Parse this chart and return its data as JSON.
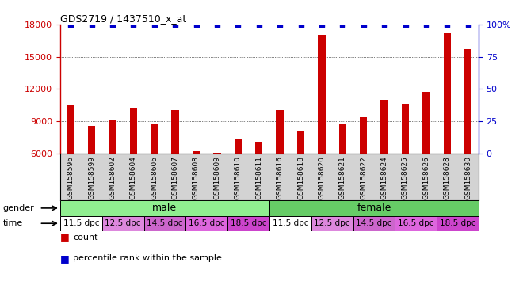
{
  "title": "GDS2719 / 1437510_x_at",
  "samples": [
    "GSM158596",
    "GSM158599",
    "GSM158602",
    "GSM158604",
    "GSM158606",
    "GSM158607",
    "GSM158608",
    "GSM158609",
    "GSM158610",
    "GSM158611",
    "GSM158616",
    "GSM158618",
    "GSM158620",
    "GSM158621",
    "GSM158622",
    "GSM158624",
    "GSM158625",
    "GSM158626",
    "GSM158628",
    "GSM158630"
  ],
  "counts": [
    10500,
    8600,
    9050,
    10200,
    8700,
    10050,
    6250,
    6100,
    7400,
    7100,
    10050,
    8100,
    17000,
    8800,
    9400,
    11000,
    10600,
    11700,
    17200,
    15700
  ],
  "percentile_ranks": [
    100,
    100,
    100,
    100,
    100,
    100,
    100,
    100,
    100,
    100,
    100,
    100,
    100,
    100,
    100,
    100,
    100,
    100,
    100,
    100
  ],
  "bar_color": "#cc0000",
  "dot_color": "#0000cc",
  "ylim_left": [
    6000,
    18000
  ],
  "ylim_right": [
    0,
    100
  ],
  "yticks_left": [
    6000,
    9000,
    12000,
    15000,
    18000
  ],
  "yticks_right": [
    0,
    25,
    50,
    75,
    100
  ],
  "ytick_labels_right": [
    "0",
    "25",
    "50",
    "75",
    "100%"
  ],
  "gender_color_male": "#90ee90",
  "gender_color_female": "#66cc66",
  "time_groups_male": [
    {
      "label": "11.5 dpc",
      "start": 0,
      "end": 2,
      "color": "#ffffff"
    },
    {
      "label": "12.5 dpc",
      "start": 2,
      "end": 4,
      "color": "#dd88dd"
    },
    {
      "label": "14.5 dpc",
      "start": 4,
      "end": 6,
      "color": "#cc66cc"
    },
    {
      "label": "16.5 dpc",
      "start": 6,
      "end": 8,
      "color": "#dd66dd"
    },
    {
      "label": "18.5 dpc",
      "start": 8,
      "end": 10,
      "color": "#cc44cc"
    }
  ],
  "time_groups_female": [
    {
      "label": "11.5 dpc",
      "start": 10,
      "end": 12,
      "color": "#ffffff"
    },
    {
      "label": "12.5 dpc",
      "start": 12,
      "end": 14,
      "color": "#dd88dd"
    },
    {
      "label": "14.5 dpc",
      "start": 14,
      "end": 16,
      "color": "#cc66cc"
    },
    {
      "label": "16.5 dpc",
      "start": 16,
      "end": 18,
      "color": "#dd66dd"
    },
    {
      "label": "18.5 dpc",
      "start": 18,
      "end": 20,
      "color": "#cc44cc"
    }
  ],
  "background_color": "#ffffff",
  "tick_label_color_left": "#cc0000",
  "tick_label_color_right": "#0000cc",
  "xticklabel_bg": "#d3d3d3"
}
